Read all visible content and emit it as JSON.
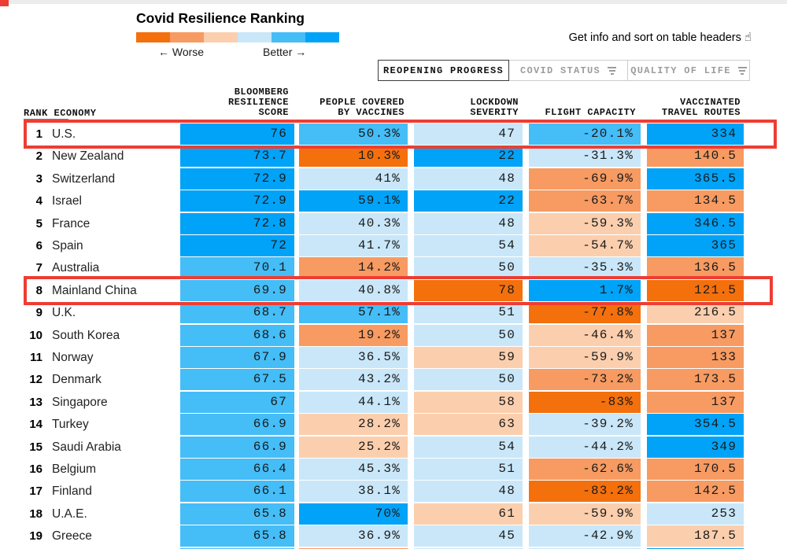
{
  "header": {
    "title": "Covid Resilience Ranking",
    "legend": {
      "worse_label": "← Worse",
      "better_label": "Better →",
      "colors": [
        "#f4700d",
        "#f79b62",
        "#fbcfae",
        "#c9e7f9",
        "#45bdf7",
        "#00a3f7"
      ]
    },
    "hint_text": "Get info and sort on table headers",
    "hint_icon": "pointing-hand-icon",
    "tabs": [
      {
        "label": "REOPENING PROGRESS",
        "active": true
      },
      {
        "label": "COVID STATUS",
        "active": false,
        "filter_icon": true
      },
      {
        "label": "QUALITY OF LIFE",
        "active": false,
        "filter_icon": true
      }
    ]
  },
  "table": {
    "headers": {
      "rank_economy": "RANK ECONOMY",
      "score": "BLOOMBERG\nRESILIENCE\nSCORE",
      "vaccines": "PEOPLE COVERED\nBY VACCINES",
      "lockdown": "LOCKDOWN\nSEVERITY",
      "flight": "FLIGHT CAPACITY",
      "routes": "VACCINATED\nTRAVEL ROUTES"
    },
    "rows": [
      {
        "rank": "1",
        "economy": "U.S.",
        "highlighted": true,
        "cells": {
          "score": {
            "v": "76",
            "t": "b3"
          },
          "vaccines": {
            "v": "50.3%",
            "t": "b2"
          },
          "lockdown": {
            "v": "47",
            "t": "b1"
          },
          "flight": {
            "v": "-20.1%",
            "t": "b2"
          },
          "routes": {
            "v": "334",
            "t": "b3"
          }
        }
      },
      {
        "rank": "2",
        "economy": "New Zealand",
        "highlighted": false,
        "cells": {
          "score": {
            "v": "73.7",
            "t": "b3"
          },
          "vaccines": {
            "v": "10.3%",
            "t": "o3"
          },
          "lockdown": {
            "v": "22",
            "t": "b3"
          },
          "flight": {
            "v": "-31.3%",
            "t": "b1"
          },
          "routes": {
            "v": "140.5",
            "t": "o2"
          }
        }
      },
      {
        "rank": "3",
        "economy": "Switzerland",
        "highlighted": false,
        "cells": {
          "score": {
            "v": "72.9",
            "t": "b3"
          },
          "vaccines": {
            "v": "41%",
            "t": "b1"
          },
          "lockdown": {
            "v": "48",
            "t": "b1"
          },
          "flight": {
            "v": "-69.9%",
            "t": "o2"
          },
          "routes": {
            "v": "365.5",
            "t": "b3"
          }
        }
      },
      {
        "rank": "4",
        "economy": "Israel",
        "highlighted": false,
        "cells": {
          "score": {
            "v": "72.9",
            "t": "b3"
          },
          "vaccines": {
            "v": "59.1%",
            "t": "b3"
          },
          "lockdown": {
            "v": "22",
            "t": "b3"
          },
          "flight": {
            "v": "-63.7%",
            "t": "o2"
          },
          "routes": {
            "v": "134.5",
            "t": "o2"
          }
        }
      },
      {
        "rank": "5",
        "economy": "France",
        "highlighted": false,
        "cells": {
          "score": {
            "v": "72.8",
            "t": "b3"
          },
          "vaccines": {
            "v": "40.3%",
            "t": "b1"
          },
          "lockdown": {
            "v": "48",
            "t": "b1"
          },
          "flight": {
            "v": "-59.3%",
            "t": "o1"
          },
          "routes": {
            "v": "346.5",
            "t": "b3"
          }
        }
      },
      {
        "rank": "6",
        "economy": "Spain",
        "highlighted": false,
        "cells": {
          "score": {
            "v": "72",
            "t": "b3"
          },
          "vaccines": {
            "v": "41.7%",
            "t": "b1"
          },
          "lockdown": {
            "v": "54",
            "t": "b1"
          },
          "flight": {
            "v": "-54.7%",
            "t": "o1"
          },
          "routes": {
            "v": "365",
            "t": "b3"
          }
        }
      },
      {
        "rank": "7",
        "economy": "Australia",
        "highlighted": false,
        "cells": {
          "score": {
            "v": "70.1",
            "t": "b2"
          },
          "vaccines": {
            "v": "14.2%",
            "t": "o2"
          },
          "lockdown": {
            "v": "50",
            "t": "b1"
          },
          "flight": {
            "v": "-35.3%",
            "t": "b1"
          },
          "routes": {
            "v": "136.5",
            "t": "o2"
          }
        }
      },
      {
        "rank": "8",
        "economy": "Mainland China",
        "highlighted": true,
        "cells": {
          "score": {
            "v": "69.9",
            "t": "b2"
          },
          "vaccines": {
            "v": "40.8%",
            "t": "b1"
          },
          "lockdown": {
            "v": "78",
            "t": "o3"
          },
          "flight": {
            "v": "1.7%",
            "t": "b3"
          },
          "routes": {
            "v": "121.5",
            "t": "o3"
          }
        }
      },
      {
        "rank": "9",
        "economy": "U.K.",
        "highlighted": false,
        "cells": {
          "score": {
            "v": "68.7",
            "t": "b2"
          },
          "vaccines": {
            "v": "57.1%",
            "t": "b2"
          },
          "lockdown": {
            "v": "51",
            "t": "b1"
          },
          "flight": {
            "v": "-77.8%",
            "t": "o3"
          },
          "routes": {
            "v": "216.5",
            "t": "o1"
          }
        }
      },
      {
        "rank": "10",
        "economy": "South Korea",
        "highlighted": false,
        "cells": {
          "score": {
            "v": "68.6",
            "t": "b2"
          },
          "vaccines": {
            "v": "19.2%",
            "t": "o2"
          },
          "lockdown": {
            "v": "50",
            "t": "b1"
          },
          "flight": {
            "v": "-46.4%",
            "t": "o1"
          },
          "routes": {
            "v": "137",
            "t": "o2"
          }
        }
      },
      {
        "rank": "11",
        "economy": "Norway",
        "highlighted": false,
        "cells": {
          "score": {
            "v": "67.9",
            "t": "b2"
          },
          "vaccines": {
            "v": "36.5%",
            "t": "b1"
          },
          "lockdown": {
            "v": "59",
            "t": "o1"
          },
          "flight": {
            "v": "-59.9%",
            "t": "o1"
          },
          "routes": {
            "v": "133",
            "t": "o2"
          }
        }
      },
      {
        "rank": "12",
        "economy": "Denmark",
        "highlighted": false,
        "cells": {
          "score": {
            "v": "67.5",
            "t": "b2"
          },
          "vaccines": {
            "v": "43.2%",
            "t": "b1"
          },
          "lockdown": {
            "v": "50",
            "t": "b1"
          },
          "flight": {
            "v": "-73.2%",
            "t": "o2"
          },
          "routes": {
            "v": "173.5",
            "t": "o2"
          }
        }
      },
      {
        "rank": "13",
        "economy": "Singapore",
        "highlighted": false,
        "cells": {
          "score": {
            "v": "67",
            "t": "b2"
          },
          "vaccines": {
            "v": "44.1%",
            "t": "b1"
          },
          "lockdown": {
            "v": "58",
            "t": "o1"
          },
          "flight": {
            "v": "-83%",
            "t": "o3"
          },
          "routes": {
            "v": "137",
            "t": "o2"
          }
        }
      },
      {
        "rank": "14",
        "economy": "Turkey",
        "highlighted": false,
        "cells": {
          "score": {
            "v": "66.9",
            "t": "b2"
          },
          "vaccines": {
            "v": "28.2%",
            "t": "o1"
          },
          "lockdown": {
            "v": "63",
            "t": "o1"
          },
          "flight": {
            "v": "-39.2%",
            "t": "b1"
          },
          "routes": {
            "v": "354.5",
            "t": "b3"
          }
        }
      },
      {
        "rank": "15",
        "economy": "Saudi Arabia",
        "highlighted": false,
        "cells": {
          "score": {
            "v": "66.9",
            "t": "b2"
          },
          "vaccines": {
            "v": "25.2%",
            "t": "o1"
          },
          "lockdown": {
            "v": "54",
            "t": "b1"
          },
          "flight": {
            "v": "-44.2%",
            "t": "b1"
          },
          "routes": {
            "v": "349",
            "t": "b3"
          }
        }
      },
      {
        "rank": "16",
        "economy": "Belgium",
        "highlighted": false,
        "cells": {
          "score": {
            "v": "66.4",
            "t": "b2"
          },
          "vaccines": {
            "v": "45.3%",
            "t": "b1"
          },
          "lockdown": {
            "v": "51",
            "t": "b1"
          },
          "flight": {
            "v": "-62.6%",
            "t": "o2"
          },
          "routes": {
            "v": "170.5",
            "t": "o2"
          }
        }
      },
      {
        "rank": "17",
        "economy": "Finland",
        "highlighted": false,
        "cells": {
          "score": {
            "v": "66.1",
            "t": "b2"
          },
          "vaccines": {
            "v": "38.1%",
            "t": "b1"
          },
          "lockdown": {
            "v": "48",
            "t": "b1"
          },
          "flight": {
            "v": "-83.2%",
            "t": "o3"
          },
          "routes": {
            "v": "142.5",
            "t": "o2"
          }
        }
      },
      {
        "rank": "18",
        "economy": "U.A.E.",
        "highlighted": false,
        "cells": {
          "score": {
            "v": "65.8",
            "t": "b2"
          },
          "vaccines": {
            "v": "70%",
            "t": "b3"
          },
          "lockdown": {
            "v": "61",
            "t": "o1"
          },
          "flight": {
            "v": "-59.9%",
            "t": "o1"
          },
          "routes": {
            "v": "253",
            "t": "b1"
          }
        }
      },
      {
        "rank": "19",
        "economy": "Greece",
        "highlighted": false,
        "cells": {
          "score": {
            "v": "65.8",
            "t": "b2"
          },
          "vaccines": {
            "v": "36.9%",
            "t": "b1"
          },
          "lockdown": {
            "v": "45",
            "t": "b1"
          },
          "flight": {
            "v": "-42.9%",
            "t": "b1"
          },
          "routes": {
            "v": "187.5",
            "t": "o1"
          }
        }
      }
    ],
    "partial_row_tones": {
      "score": "b2",
      "vaccines": "o2",
      "lockdown": "b1",
      "flight": "b1",
      "routes": "b3"
    }
  },
  "colors": {
    "o3": "#f4700d",
    "o2": "#f79b62",
    "o1": "#fbcfae",
    "b1": "#c9e7f9",
    "b2": "#45bdf7",
    "b3": "#00a3f7"
  },
  "annotations": {
    "highlight_color": "#ee3d33",
    "highlighted_rows": [
      "1 U.S.",
      "8 Mainland China"
    ]
  },
  "chart_data": {
    "type": "table",
    "title": "Covid Resilience Ranking",
    "legend": {
      "scale": [
        "Worse",
        "Better"
      ],
      "worse_color": "orange",
      "better_color": "blue"
    },
    "columns": [
      "Rank",
      "Economy",
      "Bloomberg Resilience Score",
      "People Covered by Vaccines",
      "Lockdown Severity",
      "Flight Capacity",
      "Vaccinated Travel Routes"
    ],
    "rows": [
      [
        1,
        "U.S.",
        76,
        "50.3%",
        47,
        "-20.1%",
        334
      ],
      [
        2,
        "New Zealand",
        73.7,
        "10.3%",
        22,
        "-31.3%",
        140.5
      ],
      [
        3,
        "Switzerland",
        72.9,
        "41%",
        48,
        "-69.9%",
        365.5
      ],
      [
        4,
        "Israel",
        72.9,
        "59.1%",
        22,
        "-63.7%",
        134.5
      ],
      [
        5,
        "France",
        72.8,
        "40.3%",
        48,
        "-59.3%",
        346.5
      ],
      [
        6,
        "Spain",
        72,
        "41.7%",
        54,
        "-54.7%",
        365
      ],
      [
        7,
        "Australia",
        70.1,
        "14.2%",
        50,
        "-35.3%",
        136.5
      ],
      [
        8,
        "Mainland China",
        69.9,
        "40.8%",
        78,
        "1.7%",
        121.5
      ],
      [
        9,
        "U.K.",
        68.7,
        "57.1%",
        51,
        "-77.8%",
        216.5
      ],
      [
        10,
        "South Korea",
        68.6,
        "19.2%",
        50,
        "-46.4%",
        137
      ],
      [
        11,
        "Norway",
        67.9,
        "36.5%",
        59,
        "-59.9%",
        133
      ],
      [
        12,
        "Denmark",
        67.5,
        "43.2%",
        50,
        "-73.2%",
        173.5
      ],
      [
        13,
        "Singapore",
        67,
        "44.1%",
        58,
        "-83%",
        137
      ],
      [
        14,
        "Turkey",
        66.9,
        "28.2%",
        63,
        "-39.2%",
        354.5
      ],
      [
        15,
        "Saudi Arabia",
        66.9,
        "25.2%",
        54,
        "-44.2%",
        349
      ],
      [
        16,
        "Belgium",
        66.4,
        "45.3%",
        51,
        "-62.6%",
        170.5
      ],
      [
        17,
        "Finland",
        66.1,
        "38.1%",
        48,
        "-83.2%",
        142.5
      ],
      [
        18,
        "U.A.E.",
        65.8,
        "70%",
        61,
        "-59.9%",
        253
      ],
      [
        19,
        "Greece",
        65.8,
        "36.9%",
        45,
        "-42.9%",
        187.5
      ]
    ]
  }
}
